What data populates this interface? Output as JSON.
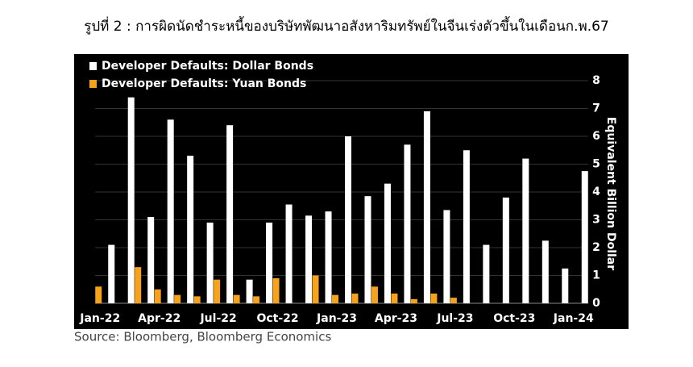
{
  "chart_data": {
    "type": "bar",
    "title": "รูปที่ 2 : การผิดนัดชำระหนี้ของบริษัทพัฒนาอสังหาริมทรัพย์ในจีนเร่งตัวขึ้นในเดือนก.พ.67",
    "y_axis_label": "Equivalent Billion Dollar",
    "source": "Source: Bloomberg, Bloomberg Economics",
    "categories": [
      "Jan-22",
      null,
      null,
      "Apr-22",
      null,
      null,
      "Jul-22",
      null,
      null,
      "Oct-22",
      null,
      null,
      "Jan-23",
      null,
      null,
      "Apr-23",
      null,
      null,
      "Jul-23",
      null,
      null,
      "Oct-23",
      null,
      null,
      "Jan-24"
    ],
    "series": [
      {
        "name": "Developer Defaults: Dollar Bonds",
        "color": "#ffffff",
        "values": [
          2.1,
          7.4,
          3.1,
          6.6,
          5.3,
          2.9,
          6.4,
          0.85,
          2.9,
          3.55,
          3.15,
          3.3,
          6.0,
          3.85,
          4.3,
          5.7,
          6.9,
          3.35,
          5.5,
          2.1,
          3.8,
          5.2,
          2.25,
          1.25,
          4.75
        ]
      },
      {
        "name": "Developer Defaults: Yuan Bonds",
        "color": "#f7a21b",
        "values": [
          0.6,
          null,
          1.3,
          0.5,
          0.3,
          0.25,
          0.85,
          0.3,
          0.25,
          0.9,
          null,
          1.0,
          0.3,
          0.35,
          0.6,
          0.35,
          0.15,
          0.35,
          0.2,
          null,
          null,
          null,
          null,
          null,
          null
        ]
      }
    ],
    "ylim": [
      0,
      8
    ],
    "yticks": [
      0,
      1,
      2,
      3,
      4,
      5,
      6,
      7,
      8
    ],
    "grid": true,
    "legend": "top-left"
  }
}
